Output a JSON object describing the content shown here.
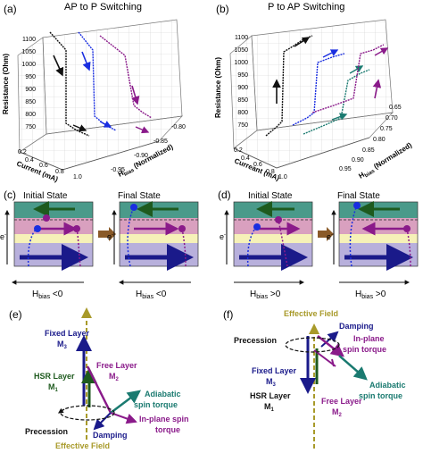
{
  "panel_a": {
    "letter": "(a)",
    "title": "AP to P Switching",
    "ylabel": "Resistance (Ohm)",
    "yticks": [
      "1100",
      "1050",
      "1000",
      "950",
      "900",
      "850",
      "800",
      "750"
    ],
    "xlabel": "Current (mA)",
    "xticks": [
      "0.2",
      "0.4",
      "0.6",
      "0.8",
      "1.0"
    ],
    "zlabel": "H",
    "zlabel_sub": "bias",
    "zlabel_tail": " (Normalized)",
    "zticks": [
      "-0.80",
      "-0.85",
      "-0.90",
      "-0.95"
    ]
  },
  "panel_b": {
    "letter": "(b)",
    "title": "P to AP Switching",
    "ylabel": "Resistance (Ohm)",
    "yticks": [
      "1100",
      "1050",
      "1000",
      "950",
      "900",
      "850",
      "800",
      "750"
    ],
    "xlabel": "Curreant (mA)",
    "xticks": [
      "0.2",
      "0.4",
      "0.6",
      "0.8",
      "1.0"
    ],
    "zlabel": "H",
    "zlabel_sub": "bias",
    "zlabel_tail": " (Normalized)",
    "zticks": [
      "0.65",
      "0.70",
      "0.75",
      "0.80",
      "0.85",
      "0.90",
      "0.95"
    ]
  },
  "panel_c": {
    "letter": "(c)",
    "initial": "Initial State",
    "final": "Final State",
    "electron": "e",
    "electron_sup": "-",
    "hbias": "H",
    "hbias_sub": "bias",
    "condition": " <0"
  },
  "panel_d": {
    "letter": "(d)",
    "initial": "Initial State",
    "final": "Final State",
    "electron": "e",
    "electron_sup": "-",
    "hbias": "H",
    "hbias_sub": "bias",
    "condition": " >0"
  },
  "panel_e": {
    "letter": "(e)",
    "fixed_layer": "Fixed Layer",
    "fixed_m": "M",
    "fixed_sub": "3",
    "hsr_layer": "HSR Layer",
    "hsr_m": "M",
    "hsr_sub": "1",
    "free_layer": "Free Layer",
    "free_m": "M",
    "free_sub": "2",
    "adiabatic_1": "Adiabatic",
    "adiabatic_2": "spin torque",
    "inplane_1": "In-plane spin",
    "inplane_2": "torque",
    "precession": "Precession",
    "damping": "Damping",
    "effective_field": "Effective Field"
  },
  "panel_f": {
    "letter": "(f)",
    "effective_field": "Effective Field",
    "damping": "Damping",
    "inplane_1": "In-plane",
    "inplane_2": "spin torque",
    "precession": "Precession",
    "fixed_layer": "Fixed Layer",
    "fixed_m": "M",
    "fixed_sub": "3",
    "hsr_layer": "HSR Layer",
    "hsr_m": "M",
    "hsr_sub": "1",
    "free_layer": "Free Layer",
    "free_m": "M",
    "free_sub": "2",
    "adiabatic_1": "Adiabatic",
    "adiabatic_2": "spin torque"
  },
  "colors": {
    "black": "#111111",
    "blue": "#1a2ee0",
    "purple": "#8a1a8a",
    "teal": "#1a7a70",
    "green": "#1e5a1e",
    "navy": "#1a1a8a",
    "olive": "#a89a2a",
    "top_layer": "#4a9a8a",
    "mid_layer": "#d9a0bf",
    "spacer_layer": "#f6f1b8",
    "bottom_layer": "#b8b0dc",
    "arrow_brown": "#8a5a28"
  }
}
